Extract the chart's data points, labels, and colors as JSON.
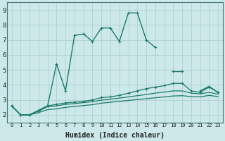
{
  "title": "",
  "xlabel": "Humidex (Indice chaleur)",
  "bg_color": "#cce8e8",
  "line_color": "#1a7a6a",
  "grid_color": "#aacccc",
  "x_values": [
    0,
    1,
    2,
    3,
    4,
    5,
    6,
    7,
    8,
    9,
    10,
    11,
    12,
    13,
    14,
    15,
    16,
    17,
    18,
    19,
    20,
    21,
    22,
    23
  ],
  "series1": [
    2.6,
    2.0,
    2.0,
    2.3,
    2.6,
    5.4,
    3.6,
    7.3,
    7.4,
    6.9,
    7.8,
    7.8,
    6.9,
    8.8,
    8.8,
    7.0,
    6.5,
    null,
    4.9,
    4.9,
    null,
    3.6,
    3.9,
    3.5
  ],
  "series2": [
    2.6,
    2.0,
    2.0,
    2.3,
    2.6,
    2.7,
    2.8,
    2.85,
    2.9,
    3.0,
    3.15,
    3.2,
    3.3,
    3.45,
    3.6,
    3.75,
    3.85,
    3.95,
    4.1,
    4.1,
    3.6,
    3.5,
    3.85,
    3.5
  ],
  "series3": [
    2.6,
    2.0,
    2.0,
    2.25,
    2.55,
    2.6,
    2.7,
    2.75,
    2.82,
    2.88,
    2.98,
    3.05,
    3.12,
    3.2,
    3.28,
    3.36,
    3.45,
    3.52,
    3.6,
    3.6,
    3.45,
    3.4,
    3.5,
    3.38
  ],
  "series4": [
    2.6,
    2.0,
    2.0,
    2.15,
    2.35,
    2.4,
    2.5,
    2.56,
    2.62,
    2.68,
    2.78,
    2.84,
    2.9,
    2.96,
    3.02,
    3.08,
    3.14,
    3.2,
    3.26,
    3.28,
    3.22,
    3.2,
    3.3,
    3.22
  ],
  "ylim": [
    1.5,
    9.5
  ],
  "xlim": [
    -0.5,
    23.5
  ],
  "yticks": [
    2,
    3,
    4,
    5,
    6,
    7,
    8,
    9
  ],
  "xticks": [
    0,
    1,
    2,
    3,
    4,
    5,
    6,
    7,
    8,
    9,
    10,
    11,
    12,
    13,
    14,
    15,
    16,
    17,
    18,
    19,
    20,
    21,
    22,
    23
  ]
}
